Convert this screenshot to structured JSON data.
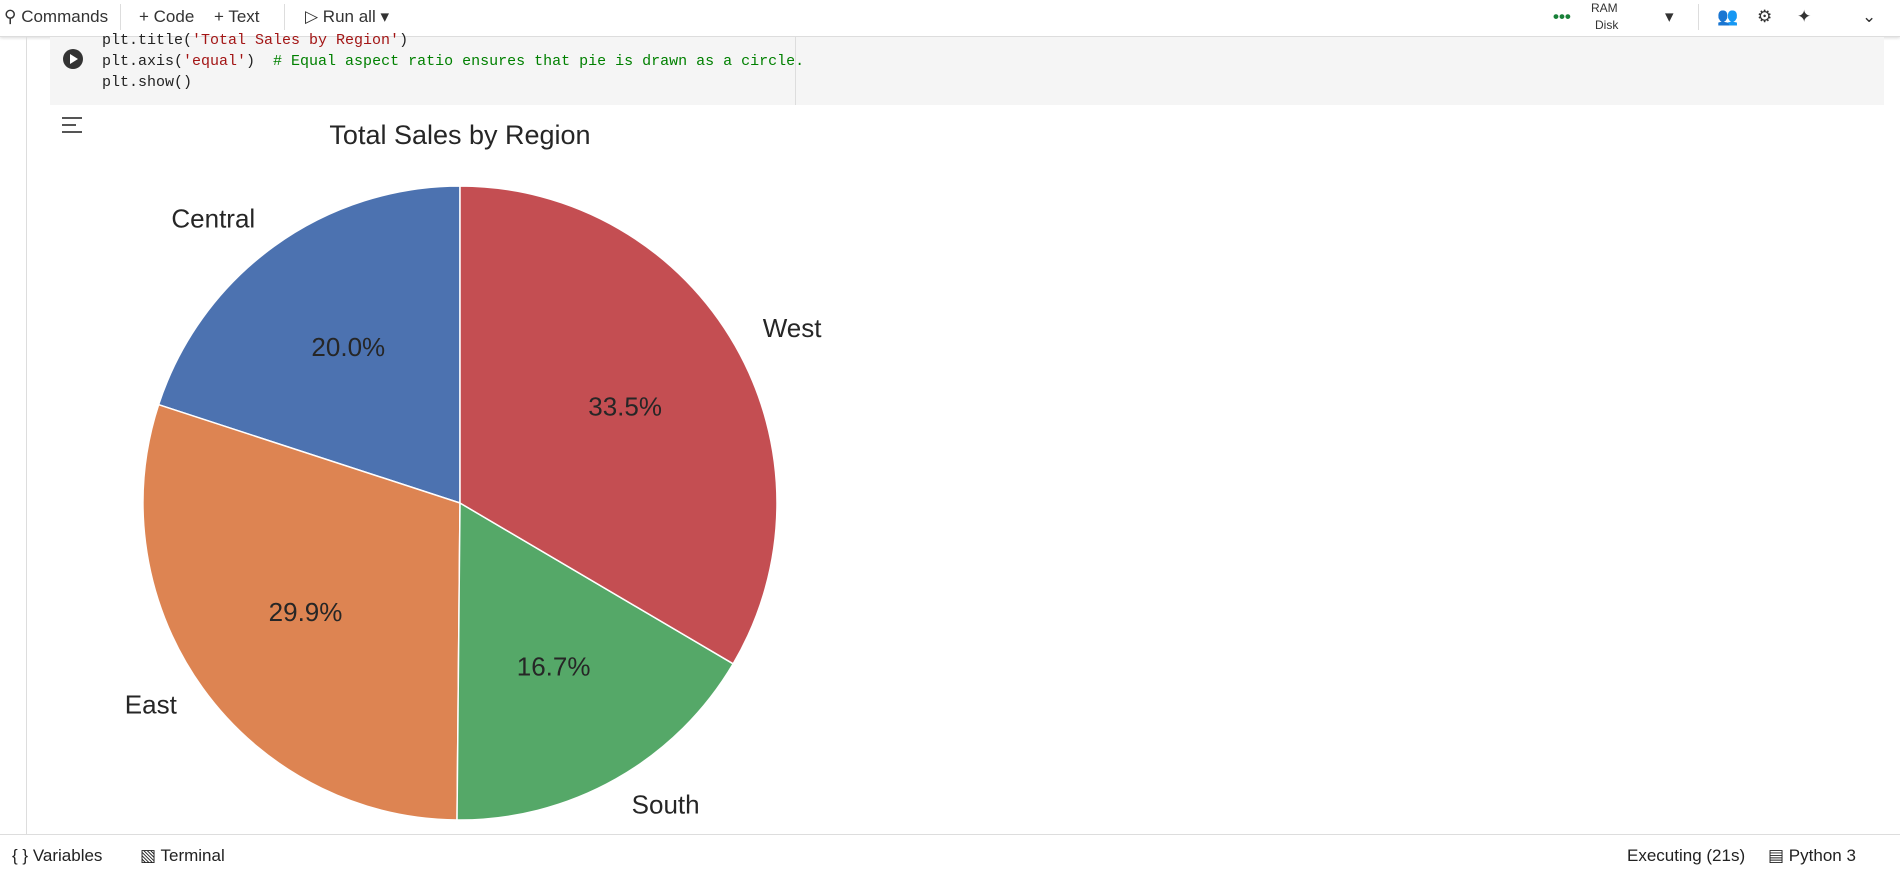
{
  "toolbar": {
    "commands": "Commands",
    "code": "Code",
    "text": "Text",
    "run_all": "Run all",
    "ram": "RAM",
    "disk": "Disk"
  },
  "code": {
    "lines": [
      [
        "plt.title(",
        "'Total Sales by Region'",
        ")"
      ],
      [
        "plt.axis(",
        "'equal'",
        ")  ",
        "# Equal aspect ratio ensures that pie is drawn as a circle."
      ],
      [
        "plt.show()"
      ]
    ]
  },
  "chart_data": {
    "type": "pie",
    "title": "Total Sales by Region",
    "categories": [
      "Central",
      "East",
      "South",
      "West"
    ],
    "values": [
      20.0,
      29.9,
      16.7,
      33.5
    ],
    "value_labels": [
      "20.0%",
      "29.9%",
      "16.7%",
      "33.5%"
    ],
    "colors": [
      "#4c72b0",
      "#dd8452",
      "#55a868",
      "#c44e52"
    ],
    "startangle": 90,
    "counterclock": true
  },
  "statusbar": {
    "variables": "Variables",
    "terminal": "Terminal",
    "executing": "Executing (21s)",
    "kernel": "Python 3"
  }
}
